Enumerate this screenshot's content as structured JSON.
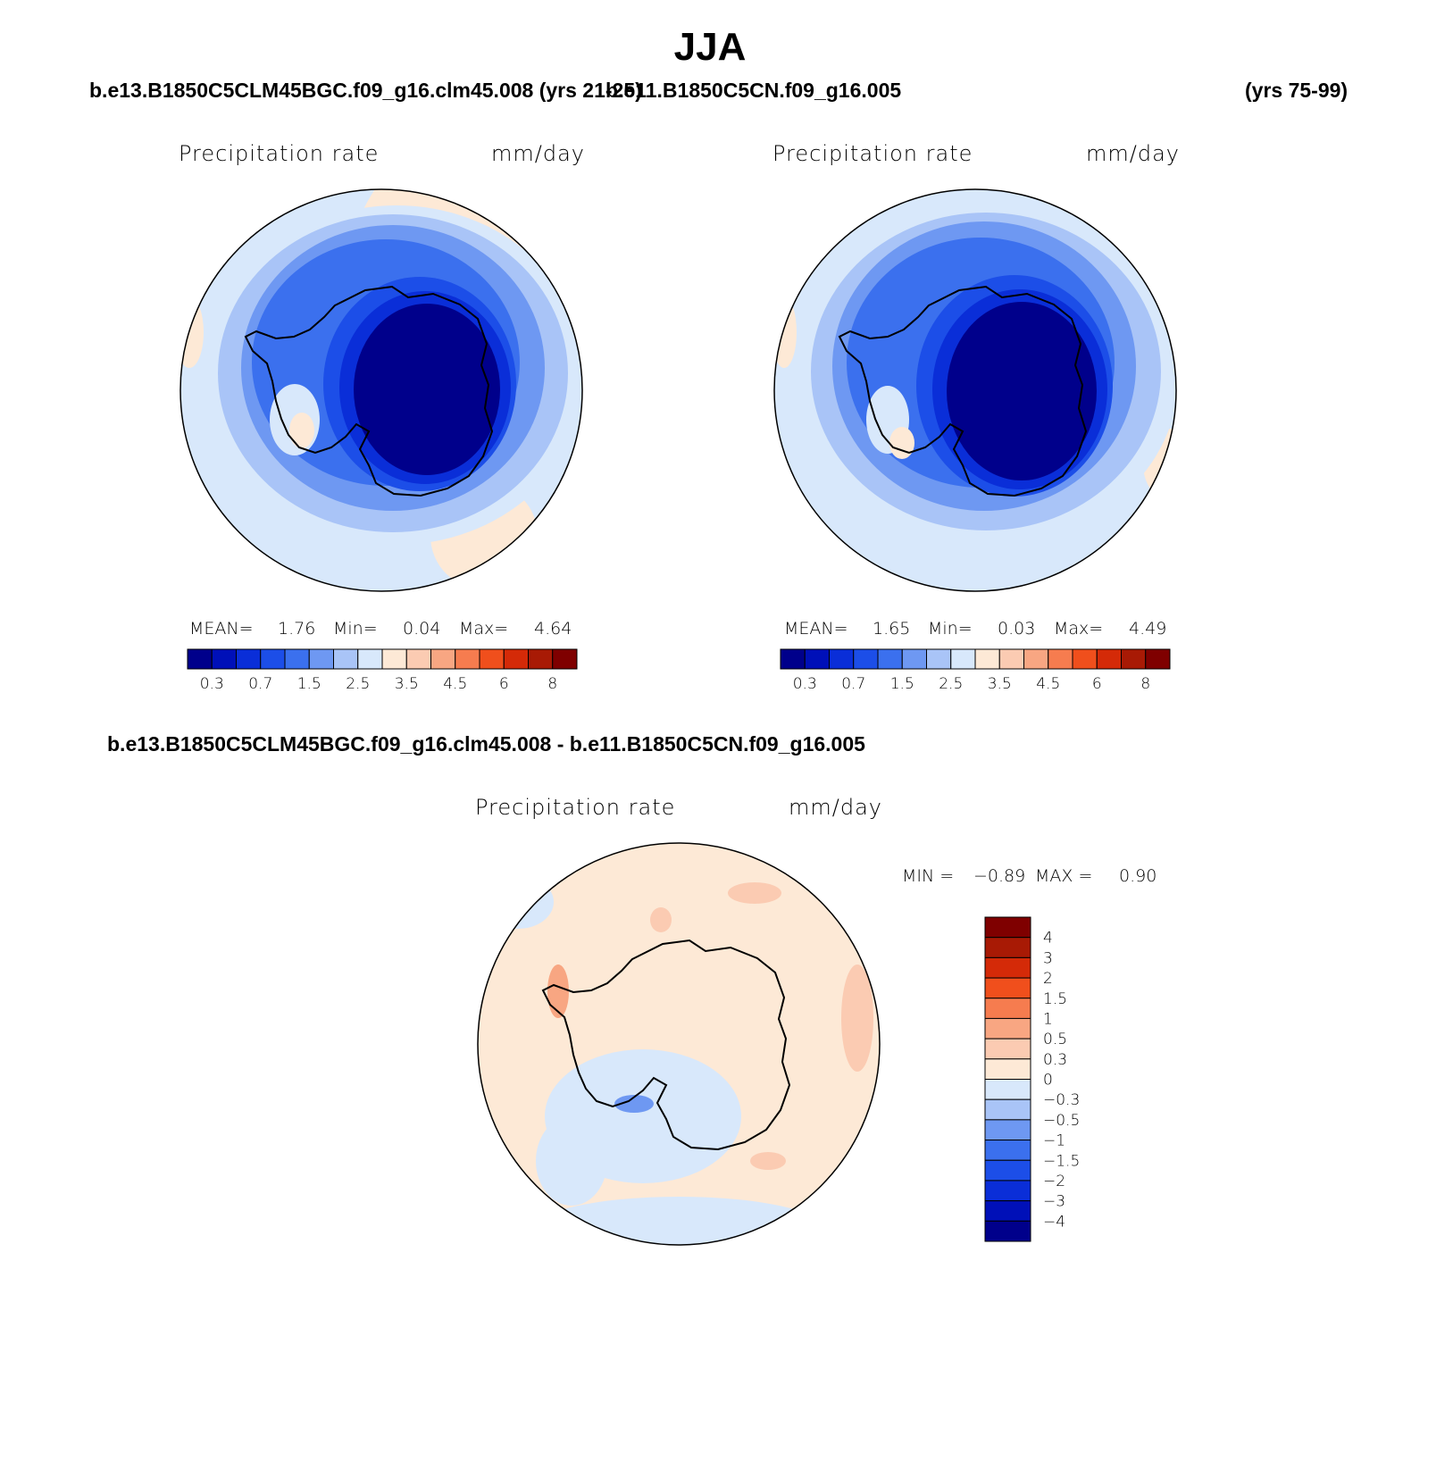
{
  "title": "JJA",
  "case_titles": {
    "left": "b.e13.B1850C5CLM45BGC.f09_g16.clm45.008 (yrs 21-25)",
    "right": "b.e11.B1850C5CN.f09_g16.005",
    "right_years": "(yrs 75-99)",
    "diff": "b.e13.B1850C5CLM45BGC.f09_g16.clm45.008 - b.e11.B1850C5CN.f09_g16.005"
  },
  "panels": [
    {
      "variable": "Precipitation rate",
      "units": "mm/day",
      "mean_label": "MEAN=",
      "mean": "1.76",
      "min_label": "Min=",
      "min": "0.04",
      "max_label": "Max=",
      "max": "4.64"
    },
    {
      "variable": "Precipitation rate",
      "units": "mm/day",
      "mean_label": "MEAN=",
      "mean": "1.65",
      "min_label": "Min=",
      "min": "0.03",
      "max_label": "Max=",
      "max": "4.49"
    }
  ],
  "diff_panel": {
    "variable": "Precipitation rate",
    "units": "mm/day",
    "min_label": "MIN =",
    "min": "−0.89",
    "max_label": "MAX =",
    "max": "0.90"
  },
  "colorbar_abs": {
    "colors": [
      "#00008b",
      "#0010b8",
      "#0a2ed8",
      "#1c4ee8",
      "#3b70ee",
      "#6e98f2",
      "#a9c4f7",
      "#d8e8fb",
      "#fde9d6",
      "#fbcbb2",
      "#f8a682",
      "#f67c4f",
      "#f04f1c",
      "#d42a08",
      "#a81a05",
      "#7f0000"
    ],
    "tick_labels": [
      "0.3",
      "0.7",
      "1.5",
      "2.5",
      "3.5",
      "4.5",
      "6",
      "8"
    ]
  },
  "colorbar_diff": {
    "colors": [
      "#00008b",
      "#0010b8",
      "#0a2ed8",
      "#1c4ee8",
      "#3b70ee",
      "#6e98f2",
      "#a9c4f7",
      "#d8e8fb",
      "#fde9d6",
      "#fbcbb2",
      "#f8a682",
      "#f67c4f",
      "#f04f1c",
      "#d42a08",
      "#a81a05",
      "#7f0000"
    ],
    "tick_labels": [
      "4",
      "3",
      "2",
      "1.5",
      "1",
      "0.5",
      "0.3",
      "0",
      "−0.3",
      "−0.5",
      "−1",
      "−1.5",
      "−2",
      "−3",
      "−4"
    ]
  }
}
